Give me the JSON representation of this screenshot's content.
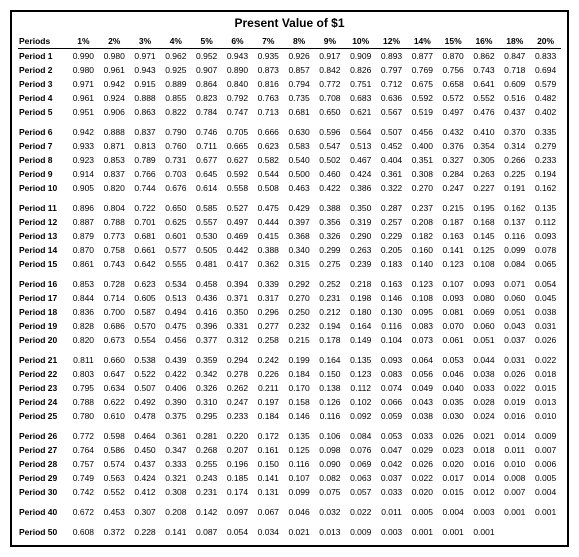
{
  "title": "Present Value of $1",
  "columns": [
    "Periods",
    "1%",
    "2%",
    "3%",
    "4%",
    "5%",
    "6%",
    "7%",
    "8%",
    "9%",
    "10%",
    "12%",
    "14%",
    "15%",
    "16%",
    "18%",
    "20%"
  ],
  "blocks": [
    [
      [
        "Period 1",
        "0.990",
        "0.980",
        "0.971",
        "0.962",
        "0.952",
        "0.943",
        "0.935",
        "0.926",
        "0.917",
        "0.909",
        "0.893",
        "0.877",
        "0.870",
        "0.862",
        "0.847",
        "0.833"
      ],
      [
        "Period 2",
        "0.980",
        "0.961",
        "0.943",
        "0.925",
        "0.907",
        "0.890",
        "0.873",
        "0.857",
        "0.842",
        "0.826",
        "0.797",
        "0.769",
        "0.756",
        "0.743",
        "0.718",
        "0.694"
      ],
      [
        "Period 3",
        "0.971",
        "0.942",
        "0.915",
        "0.889",
        "0.864",
        "0.840",
        "0.816",
        "0.794",
        "0.772",
        "0.751",
        "0.712",
        "0.675",
        "0.658",
        "0.641",
        "0.609",
        "0.579"
      ],
      [
        "Period 4",
        "0.961",
        "0.924",
        "0.888",
        "0.855",
        "0.823",
        "0.792",
        "0.763",
        "0.735",
        "0.708",
        "0.683",
        "0.636",
        "0.592",
        "0.572",
        "0.552",
        "0.516",
        "0.482"
      ],
      [
        "Period 5",
        "0.951",
        "0.906",
        "0.863",
        "0.822",
        "0.784",
        "0.747",
        "0.713",
        "0.681",
        "0.650",
        "0.621",
        "0.567",
        "0.519",
        "0.497",
        "0.476",
        "0.437",
        "0.402"
      ]
    ],
    [
      [
        "Period 6",
        "0.942",
        "0.888",
        "0.837",
        "0.790",
        "0.746",
        "0.705",
        "0.666",
        "0.630",
        "0.596",
        "0.564",
        "0.507",
        "0.456",
        "0.432",
        "0.410",
        "0.370",
        "0.335"
      ],
      [
        "Period 7",
        "0.933",
        "0.871",
        "0.813",
        "0.760",
        "0.711",
        "0.665",
        "0.623",
        "0.583",
        "0.547",
        "0.513",
        "0.452",
        "0.400",
        "0.376",
        "0.354",
        "0.314",
        "0.279"
      ],
      [
        "Period 8",
        "0.923",
        "0.853",
        "0.789",
        "0.731",
        "0.677",
        "0.627",
        "0.582",
        "0.540",
        "0.502",
        "0.467",
        "0.404",
        "0.351",
        "0.327",
        "0.305",
        "0.266",
        "0.233"
      ],
      [
        "Period 9",
        "0.914",
        "0.837",
        "0.766",
        "0.703",
        "0.645",
        "0.592",
        "0.544",
        "0.500",
        "0.460",
        "0.424",
        "0.361",
        "0.308",
        "0.284",
        "0.263",
        "0.225",
        "0.194"
      ],
      [
        "Period 10",
        "0.905",
        "0.820",
        "0.744",
        "0.676",
        "0.614",
        "0.558",
        "0.508",
        "0.463",
        "0.422",
        "0.386",
        "0.322",
        "0.270",
        "0.247",
        "0.227",
        "0.191",
        "0.162"
      ]
    ],
    [
      [
        "Period 11",
        "0.896",
        "0.804",
        "0.722",
        "0.650",
        "0.585",
        "0.527",
        "0.475",
        "0.429",
        "0.388",
        "0.350",
        "0.287",
        "0.237",
        "0.215",
        "0.195",
        "0.162",
        "0.135"
      ],
      [
        "Period 12",
        "0.887",
        "0.788",
        "0.701",
        "0.625",
        "0.557",
        "0.497",
        "0.444",
        "0.397",
        "0.356",
        "0.319",
        "0.257",
        "0.208",
        "0.187",
        "0.168",
        "0.137",
        "0.112"
      ],
      [
        "Period 13",
        "0.879",
        "0.773",
        "0.681",
        "0.601",
        "0.530",
        "0.469",
        "0.415",
        "0.368",
        "0.326",
        "0.290",
        "0.229",
        "0.182",
        "0.163",
        "0.145",
        "0.116",
        "0.093"
      ],
      [
        "Period 14",
        "0.870",
        "0.758",
        "0.661",
        "0.577",
        "0.505",
        "0.442",
        "0.388",
        "0.340",
        "0.299",
        "0.263",
        "0.205",
        "0.160",
        "0.141",
        "0.125",
        "0.099",
        "0.078"
      ],
      [
        "Period 15",
        "0.861",
        "0.743",
        "0.642",
        "0.555",
        "0.481",
        "0.417",
        "0.362",
        "0.315",
        "0.275",
        "0.239",
        "0.183",
        "0.140",
        "0.123",
        "0.108",
        "0.084",
        "0.065"
      ]
    ],
    [
      [
        "Period 16",
        "0.853",
        "0.728",
        "0.623",
        "0.534",
        "0.458",
        "0.394",
        "0.339",
        "0.292",
        "0.252",
        "0.218",
        "0.163",
        "0.123",
        "0.107",
        "0.093",
        "0.071",
        "0.054"
      ],
      [
        "Period 17",
        "0.844",
        "0.714",
        "0.605",
        "0.513",
        "0.436",
        "0.371",
        "0.317",
        "0.270",
        "0.231",
        "0.198",
        "0.146",
        "0.108",
        "0.093",
        "0.080",
        "0.060",
        "0.045"
      ],
      [
        "Period 18",
        "0.836",
        "0.700",
        "0.587",
        "0.494",
        "0.416",
        "0.350",
        "0.296",
        "0.250",
        "0.212",
        "0.180",
        "0.130",
        "0.095",
        "0.081",
        "0.069",
        "0.051",
        "0.038"
      ],
      [
        "Period 19",
        "0.828",
        "0.686",
        "0.570",
        "0.475",
        "0.396",
        "0.331",
        "0.277",
        "0.232",
        "0.194",
        "0.164",
        "0.116",
        "0.083",
        "0.070",
        "0.060",
        "0.043",
        "0.031"
      ],
      [
        "Period 20",
        "0.820",
        "0.673",
        "0.554",
        "0.456",
        "0.377",
        "0.312",
        "0.258",
        "0.215",
        "0.178",
        "0.149",
        "0.104",
        "0.073",
        "0.061",
        "0.051",
        "0.037",
        "0.026"
      ]
    ],
    [
      [
        "Period 21",
        "0.811",
        "0.660",
        "0.538",
        "0.439",
        "0.359",
        "0.294",
        "0.242",
        "0.199",
        "0.164",
        "0.135",
        "0.093",
        "0.064",
        "0.053",
        "0.044",
        "0.031",
        "0.022"
      ],
      [
        "Period 22",
        "0.803",
        "0.647",
        "0.522",
        "0.422",
        "0.342",
        "0.278",
        "0.226",
        "0.184",
        "0.150",
        "0.123",
        "0.083",
        "0.056",
        "0.046",
        "0.038",
        "0.026",
        "0.018"
      ],
      [
        "Period 23",
        "0.795",
        "0.634",
        "0.507",
        "0.406",
        "0.326",
        "0.262",
        "0.211",
        "0.170",
        "0.138",
        "0.112",
        "0.074",
        "0.049",
        "0.040",
        "0.033",
        "0.022",
        "0.015"
      ],
      [
        "Period 24",
        "0.788",
        "0.622",
        "0.492",
        "0.390",
        "0.310",
        "0.247",
        "0.197",
        "0.158",
        "0.126",
        "0.102",
        "0.066",
        "0.043",
        "0.035",
        "0.028",
        "0.019",
        "0.013"
      ],
      [
        "Period 25",
        "0.780",
        "0.610",
        "0.478",
        "0.375",
        "0.295",
        "0.233",
        "0.184",
        "0.146",
        "0.116",
        "0.092",
        "0.059",
        "0.038",
        "0.030",
        "0.024",
        "0.016",
        "0.010"
      ]
    ],
    [
      [
        "Period 26",
        "0.772",
        "0.598",
        "0.464",
        "0.361",
        "0.281",
        "0.220",
        "0.172",
        "0.135",
        "0.106",
        "0.084",
        "0.053",
        "0.033",
        "0.026",
        "0.021",
        "0.014",
        "0.009"
      ],
      [
        "Period 27",
        "0.764",
        "0.586",
        "0.450",
        "0.347",
        "0.268",
        "0.207",
        "0.161",
        "0.125",
        "0.098",
        "0.076",
        "0.047",
        "0.029",
        "0.023",
        "0.018",
        "0.011",
        "0.007"
      ],
      [
        "Period 28",
        "0.757",
        "0.574",
        "0.437",
        "0.333",
        "0.255",
        "0.196",
        "0.150",
        "0.116",
        "0.090",
        "0.069",
        "0.042",
        "0.026",
        "0.020",
        "0.016",
        "0.010",
        "0.006"
      ],
      [
        "Period 29",
        "0.749",
        "0.563",
        "0.424",
        "0.321",
        "0.243",
        "0.185",
        "0.141",
        "0.107",
        "0.082",
        "0.063",
        "0.037",
        "0.022",
        "0.017",
        "0.014",
        "0.008",
        "0.005"
      ],
      [
        "Period 30",
        "0.742",
        "0.552",
        "0.412",
        "0.308",
        "0.231",
        "0.174",
        "0.131",
        "0.099",
        "0.075",
        "0.057",
        "0.033",
        "0.020",
        "0.015",
        "0.012",
        "0.007",
        "0.004"
      ]
    ],
    [
      [
        "Period 40",
        "0.672",
        "0.453",
        "0.307",
        "0.208",
        "0.142",
        "0.097",
        "0.067",
        "0.046",
        "0.032",
        "0.022",
        "0.011",
        "0.005",
        "0.004",
        "0.003",
        "0.001",
        "0.001"
      ]
    ],
    [
      [
        "Period 50",
        "0.608",
        "0.372",
        "0.228",
        "0.141",
        "0.087",
        "0.054",
        "0.034",
        "0.021",
        "0.013",
        "0.009",
        "0.003",
        "0.001",
        "0.001",
        "0.001",
        "",
        ""
      ]
    ]
  ],
  "style": {
    "font_size_body": 8.5,
    "font_size_title": 12,
    "border_color": "#000000",
    "background_color": "#ffffff",
    "text_color": "#000000"
  }
}
